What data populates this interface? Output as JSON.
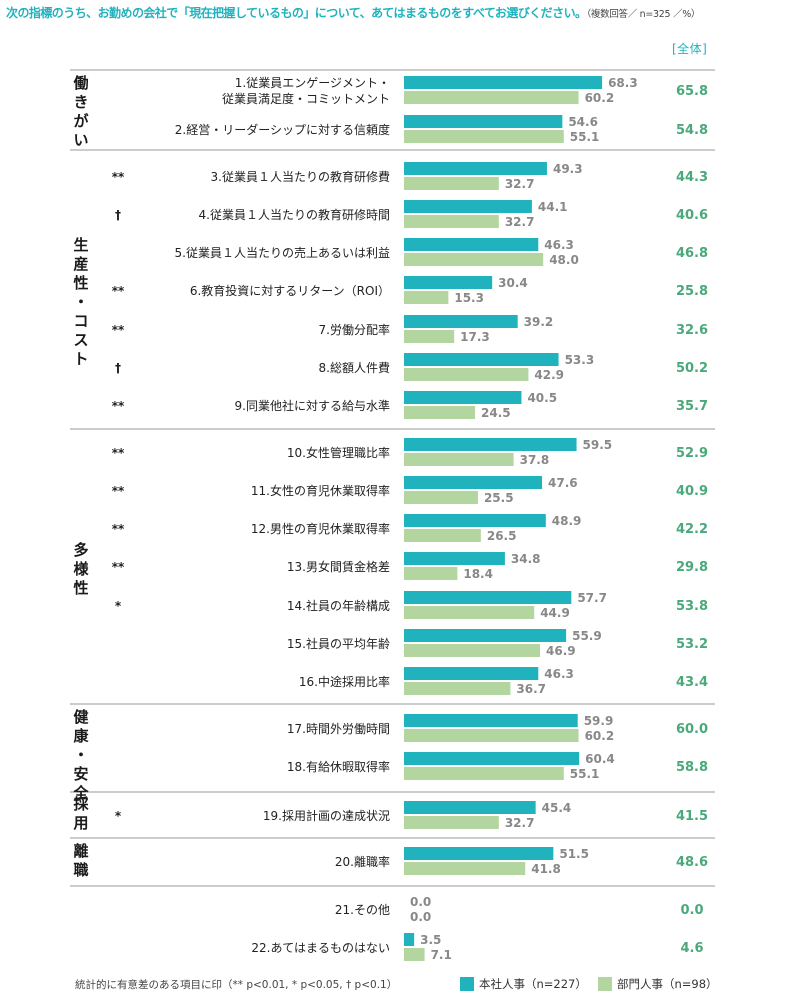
{
  "title": "次の指標のうち、お勤めの会社で「現在把握しているもの」について、あてはまるものをすべてお選びください。",
  "title_note": "（複数回答／ n=325 ／%）",
  "total_header": "[全体]",
  "footnote": "統計的に有意差のある項目に印（** p<0.01, * p<0.05, † p<0.1）",
  "legend": [
    {
      "label": "本社人事（n=227）",
      "color": "#20b3bd"
    },
    {
      "label": "部門人事（n=98）",
      "color": "#b3d6a0"
    }
  ],
  "colors": {
    "hq": "#20b3bd",
    "dept": "#b3d6a0",
    "total": "#4aa87a",
    "value_text": "#888888"
  },
  "groups": [
    {
      "name": "働きがい",
      "lines": [
        "働",
        "き",
        "が",
        "い"
      ]
    },
    {
      "name": "生産性・コスト",
      "lines": [
        "生",
        "産",
        "性",
        "・",
        "コ",
        "ス",
        "ト"
      ]
    },
    {
      "name": "多様性",
      "lines": [
        "多",
        "様",
        "性"
      ]
    },
    {
      "name": "健康・安全",
      "lines": [
        "健",
        "康",
        "・",
        "安",
        "全"
      ]
    },
    {
      "name": "採用",
      "lines": [
        "採",
        "用"
      ]
    },
    {
      "name": "離職",
      "lines": [
        "離",
        "職"
      ]
    }
  ],
  "chart_data": {
    "type": "bar",
    "orientation": "horizontal",
    "title": "次の指標のうち、お勤めの会社で「現在把握しているもの」について、あてはまるものをすべてお選びください。",
    "unit": "%",
    "xlim": [
      0,
      100
    ],
    "series": [
      {
        "name": "本社人事（n=227）",
        "values": [
          68.3,
          54.6,
          49.3,
          44.1,
          46.3,
          30.4,
          39.2,
          53.3,
          40.5,
          59.5,
          47.6,
          48.9,
          34.8,
          57.7,
          55.9,
          46.3,
          59.9,
          60.4,
          45.4,
          51.5,
          0.0,
          3.5
        ]
      },
      {
        "name": "部門人事（n=98）",
        "values": [
          60.2,
          55.1,
          32.7,
          32.7,
          48.0,
          15.3,
          17.3,
          42.9,
          24.5,
          37.8,
          25.5,
          26.5,
          18.4,
          44.9,
          46.9,
          36.7,
          60.2,
          55.1,
          32.7,
          41.8,
          0.0,
          7.1
        ]
      },
      {
        "name": "全体",
        "values": [
          65.8,
          54.8,
          44.3,
          40.6,
          46.8,
          25.8,
          32.6,
          50.2,
          35.7,
          52.9,
          40.9,
          42.2,
          29.8,
          53.8,
          53.2,
          43.4,
          60.0,
          58.8,
          41.5,
          48.6,
          0.0,
          4.6
        ]
      }
    ],
    "categories": [
      "1.従業員エンゲージメント・\n従業員満足度・コミットメント",
      "2.経営・リーダーシップに対する信頼度",
      "3.従業員１人当たりの教育研修費",
      "4.従業員１人当たりの教育研修時間",
      "5.従業員１人当たりの売上あるいは利益",
      "6.教育投資に対するリターン（ROI）",
      "7.労働分配率",
      "8.総額人件費",
      "9.同業他社に対する給与水準",
      "10.女性管理職比率",
      "11.女性の育児休業取得率",
      "12.男性の育児休業取得率",
      "13.男女間賃金格差",
      "14.社員の年齢構成",
      "15.社員の平均年齢",
      "16.中途採用比率",
      "17.時間外労働時間",
      "18.有給休暇取得率",
      "19.採用計画の達成状況",
      "20.離職率",
      "21.その他",
      "22.あてはまるものはない"
    ],
    "significance": [
      "",
      "",
      "**",
      "†",
      "",
      "**",
      "**",
      "†",
      "**",
      "**",
      "**",
      "**",
      "**",
      "*",
      "",
      "",
      "",
      "",
      "*",
      "",
      "",
      ""
    ],
    "groups": [
      {
        "name": "働きがい",
        "items": [
          1,
          2
        ]
      },
      {
        "name": "生産性・コスト",
        "items": [
          3,
          4,
          5,
          6,
          7,
          8,
          9
        ]
      },
      {
        "name": "多様性",
        "items": [
          10,
          11,
          12,
          13,
          14,
          15,
          16
        ]
      },
      {
        "name": "健康・安全",
        "items": [
          17,
          18
        ]
      },
      {
        "name": "採用",
        "items": [
          19
        ]
      },
      {
        "name": "離職",
        "items": [
          20
        ]
      },
      {
        "name": "",
        "items": [
          21,
          22
        ]
      }
    ]
  }
}
